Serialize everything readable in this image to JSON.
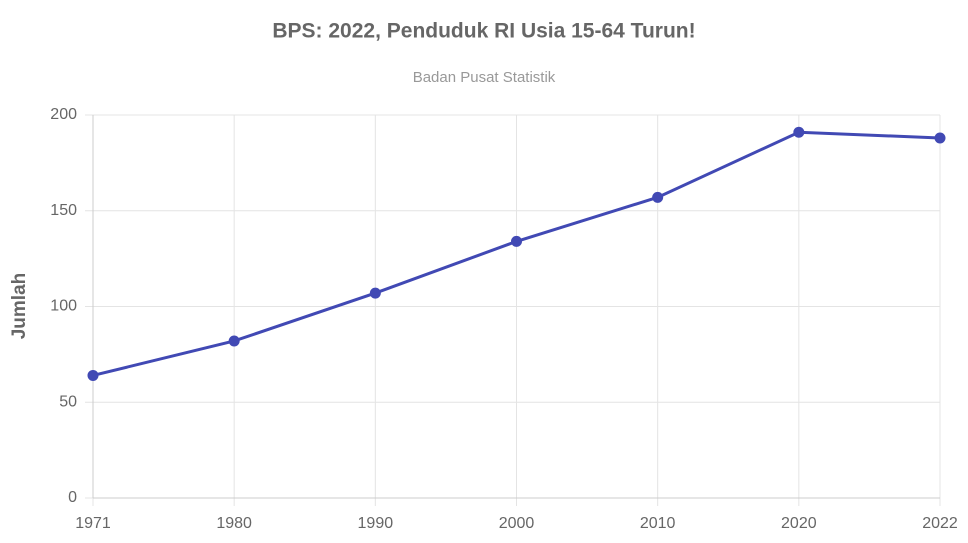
{
  "chart_data": {
    "type": "line",
    "title": "BPS: 2022, Penduduk RI Usia 15-64 Turun!",
    "subtitle": "Badan Pusat Statistik",
    "y_label": "Jumlah",
    "categories": [
      "1971",
      "1980",
      "1990",
      "2000",
      "2010",
      "2020",
      "2022"
    ],
    "values": [
      64,
      82,
      107,
      134,
      157,
      191,
      188
    ],
    "color": "#4149b4",
    "ylim": [
      0,
      200
    ],
    "yticks": [
      0,
      50,
      100,
      150,
      200
    ],
    "grid": true
  }
}
